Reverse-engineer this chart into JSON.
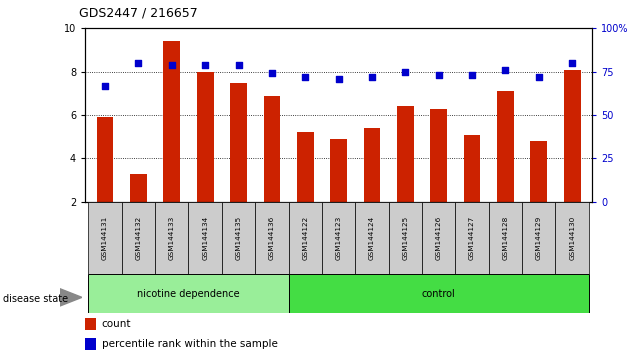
{
  "title": "GDS2447 / 216657",
  "samples": [
    "GSM144131",
    "GSM144132",
    "GSM144133",
    "GSM144134",
    "GSM144135",
    "GSM144136",
    "GSM144122",
    "GSM144123",
    "GSM144124",
    "GSM144125",
    "GSM144126",
    "GSM144127",
    "GSM144128",
    "GSM144129",
    "GSM144130"
  ],
  "bar_values": [
    5.9,
    3.3,
    9.4,
    8.0,
    7.5,
    6.9,
    5.2,
    4.9,
    5.4,
    6.4,
    6.3,
    5.1,
    7.1,
    4.8,
    8.1
  ],
  "percentile_values": [
    67,
    80,
    79,
    79,
    79,
    74,
    72,
    71,
    72,
    75,
    73,
    73,
    76,
    72,
    80
  ],
  "group1_label": "nicotine dependence",
  "group2_label": "control",
  "group1_count": 6,
  "group2_count": 9,
  "ylim_left": [
    2,
    10
  ],
  "ylim_right": [
    0,
    100
  ],
  "yticks_left": [
    2,
    4,
    6,
    8,
    10
  ],
  "yticks_right": [
    0,
    25,
    50,
    75,
    100
  ],
  "bar_color": "#cc2200",
  "dot_color": "#0000cc",
  "group1_color": "#99ee99",
  "group2_color": "#44dd44",
  "label_bg_color": "#cccccc",
  "bar_width": 0.5,
  "legend_count_label": "count",
  "legend_pct_label": "percentile rank within the sample",
  "disease_state_label": "disease state"
}
